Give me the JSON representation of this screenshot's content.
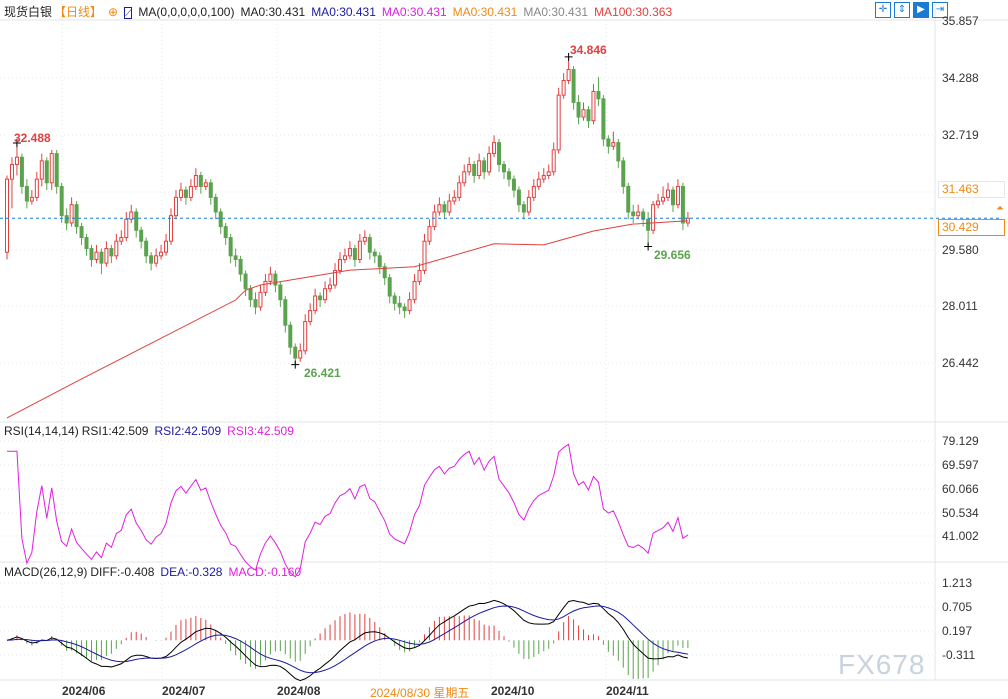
{
  "header": {
    "symbol": "现货白银",
    "period": "【日线】",
    "ma_label": "MA(0,0,0,0,0,100)",
    "ma_values": [
      {
        "text": "MA0:30.431",
        "color": "#222222"
      },
      {
        "text": "MA0:30.431",
        "color": "#1a1aa0"
      },
      {
        "text": "MA0:30.431",
        "color": "#e020e0"
      },
      {
        "text": "MA0:30.431",
        "color": "#f08a14"
      },
      {
        "text": "MA0:30.431",
        "color": "#888888"
      },
      {
        "text": "MA100:30.363",
        "color": "#e04040"
      }
    ]
  },
  "toolbar": {
    "icons": [
      "crosshair-icon",
      "fit-vertical-icon",
      "play-icon",
      "scroll-right-icon"
    ]
  },
  "price_axis": [
    "35.857",
    "34.288",
    "32.719",
    "29.580",
    "28.011",
    "26.442"
  ],
  "price_axis_orange": "31.463",
  "current_price": "30.429",
  "extremes": {
    "high": "32.488",
    "high2": "34.846",
    "low": "26.421",
    "low2": "29.656"
  },
  "rsi": {
    "label": "RSI(14,14,14)",
    "rsi1": "RSI1:42.509",
    "rsi2": "RSI2:42.509",
    "rsi3": "RSI3:42.509",
    "axis": [
      "79.129",
      "69.597",
      "60.066",
      "50.534",
      "41.002"
    ]
  },
  "macd": {
    "label": "MACD(26,12,9)",
    "diff": "DIFF:-0.408",
    "dea": "DEA:-0.328",
    "macd": "MACD:-0.160",
    "axis": [
      "1.213",
      "0.705",
      "0.197",
      "-0.311"
    ]
  },
  "dates": [
    "2024/06",
    "2024/07",
    "2024/08",
    "2024/08/30 星期五",
    "2024/10",
    "2024/11"
  ],
  "watermark": "FX678",
  "colors": {
    "up": "#e04040",
    "down": "#5ba34f",
    "ma100": "#e04040",
    "rsi": "#e020e0",
    "diff": "#000000",
    "dea": "#1a1aa0",
    "accent": "#f08a14"
  },
  "chart_data": {
    "type": "candlestick",
    "ylim": [
      24.8,
      35.857
    ],
    "candles": [
      [
        29.5,
        31.6,
        29.3,
        31.5
      ],
      [
        31.5,
        32.1,
        30.7,
        31.9
      ],
      [
        31.9,
        32.488,
        31.6,
        32.1
      ],
      [
        32.1,
        32.2,
        31.1,
        31.3
      ],
      [
        31.3,
        31.5,
        30.7,
        30.9
      ],
      [
        30.9,
        31.2,
        30.8,
        31.0
      ],
      [
        31.0,
        31.7,
        30.9,
        31.5
      ],
      [
        31.5,
        32.2,
        31.3,
        32.0
      ],
      [
        32.0,
        32.1,
        31.2,
        31.4
      ],
      [
        31.4,
        32.3,
        31.2,
        32.2
      ],
      [
        32.2,
        32.3,
        31.1,
        31.3
      ],
      [
        31.3,
        31.4,
        30.3,
        30.5
      ],
      [
        30.5,
        30.7,
        30.1,
        30.3
      ],
      [
        30.3,
        31.0,
        30.2,
        30.8
      ],
      [
        30.8,
        30.9,
        30.0,
        30.2
      ],
      [
        30.2,
        30.3,
        29.7,
        29.9
      ],
      [
        29.9,
        30.0,
        29.4,
        29.6
      ],
      [
        29.6,
        29.7,
        29.1,
        29.3
      ],
      [
        29.3,
        29.7,
        29.2,
        29.5
      ],
      [
        29.5,
        29.6,
        28.9,
        29.2
      ],
      [
        29.2,
        29.8,
        29.1,
        29.6
      ],
      [
        29.6,
        29.7,
        29.2,
        29.4
      ],
      [
        29.4,
        30.0,
        29.3,
        29.8
      ],
      [
        29.8,
        30.1,
        29.7,
        29.9
      ],
      [
        29.9,
        30.6,
        29.8,
        30.4
      ],
      [
        30.4,
        30.8,
        30.3,
        30.6
      ],
      [
        30.6,
        30.7,
        29.9,
        30.1
      ],
      [
        30.1,
        30.2,
        29.6,
        29.8
      ],
      [
        29.8,
        29.9,
        29.2,
        29.4
      ],
      [
        29.4,
        29.5,
        29.0,
        29.2
      ],
      [
        29.2,
        29.6,
        29.1,
        29.4
      ],
      [
        29.4,
        29.7,
        29.3,
        29.5
      ],
      [
        29.5,
        30.0,
        29.4,
        29.8
      ],
      [
        29.8,
        30.7,
        29.7,
        30.5
      ],
      [
        30.5,
        31.2,
        30.4,
        31.0
      ],
      [
        31.0,
        31.4,
        30.9,
        31.2
      ],
      [
        31.2,
        31.3,
        30.8,
        31.0
      ],
      [
        31.0,
        31.5,
        30.9,
        31.3
      ],
      [
        31.3,
        31.8,
        31.2,
        31.6
      ],
      [
        31.6,
        31.7,
        31.1,
        31.3
      ],
      [
        31.3,
        31.5,
        31.2,
        31.4
      ],
      [
        31.4,
        31.5,
        30.8,
        31.0
      ],
      [
        31.0,
        31.1,
        30.4,
        30.6
      ],
      [
        30.6,
        30.7,
        30.0,
        30.2
      ],
      [
        30.2,
        30.3,
        29.7,
        29.9
      ],
      [
        29.9,
        30.0,
        29.2,
        29.4
      ],
      [
        29.4,
        29.6,
        29.1,
        29.3
      ],
      [
        29.3,
        29.4,
        28.7,
        28.9
      ],
      [
        28.9,
        29.0,
        28.3,
        28.5
      ],
      [
        28.5,
        28.6,
        28.0,
        28.2
      ],
      [
        28.2,
        28.4,
        27.8,
        28.0
      ],
      [
        28.0,
        28.6,
        27.9,
        28.4
      ],
      [
        28.4,
        28.9,
        28.3,
        28.7
      ],
      [
        28.7,
        29.1,
        28.6,
        28.9
      ],
      [
        28.9,
        29.0,
        28.4,
        28.6
      ],
      [
        28.6,
        28.7,
        28.0,
        28.2
      ],
      [
        28.2,
        28.3,
        27.3,
        27.5
      ],
      [
        27.5,
        27.6,
        26.7,
        26.9
      ],
      [
        26.9,
        27.0,
        26.421,
        26.6
      ],
      [
        26.6,
        27.0,
        26.5,
        26.8
      ],
      [
        26.8,
        27.8,
        26.7,
        27.6
      ],
      [
        27.6,
        28.1,
        27.5,
        27.9
      ],
      [
        27.9,
        28.5,
        27.8,
        28.3
      ],
      [
        28.3,
        28.4,
        28.0,
        28.2
      ],
      [
        28.2,
        28.7,
        28.1,
        28.5
      ],
      [
        28.5,
        28.8,
        28.4,
        28.6
      ],
      [
        28.6,
        29.2,
        28.5,
        29.0
      ],
      [
        29.0,
        29.5,
        28.9,
        29.3
      ],
      [
        29.3,
        29.6,
        29.2,
        29.4
      ],
      [
        29.4,
        29.8,
        29.3,
        29.6
      ],
      [
        29.6,
        29.7,
        29.1,
        29.3
      ],
      [
        29.3,
        30.0,
        29.2,
        29.8
      ],
      [
        29.8,
        30.1,
        29.7,
        29.9
      ],
      [
        29.9,
        30.0,
        29.3,
        29.5
      ],
      [
        29.5,
        29.6,
        29.2,
        29.4
      ],
      [
        29.4,
        29.5,
        28.9,
        29.1
      ],
      [
        29.1,
        29.2,
        28.6,
        28.8
      ],
      [
        28.8,
        28.9,
        28.1,
        28.3
      ],
      [
        28.3,
        28.4,
        27.9,
        28.1
      ],
      [
        28.1,
        28.3,
        27.8,
        28.0
      ],
      [
        28.0,
        28.1,
        27.7,
        27.9
      ],
      [
        27.9,
        28.4,
        27.8,
        28.2
      ],
      [
        28.2,
        28.9,
        28.1,
        28.7
      ],
      [
        28.7,
        29.2,
        28.6,
        29.0
      ],
      [
        29.0,
        30.0,
        28.9,
        29.8
      ],
      [
        29.8,
        30.4,
        29.7,
        30.2
      ],
      [
        30.2,
        30.8,
        30.1,
        30.6
      ],
      [
        30.6,
        31.0,
        30.5,
        30.8
      ],
      [
        30.8,
        30.9,
        30.4,
        30.6
      ],
      [
        30.6,
        31.1,
        30.5,
        30.9
      ],
      [
        30.9,
        31.2,
        30.8,
        31.0
      ],
      [
        31.0,
        31.6,
        30.9,
        31.4
      ],
      [
        31.4,
        31.9,
        31.3,
        31.7
      ],
      [
        31.7,
        32.1,
        31.6,
        31.9
      ],
      [
        31.9,
        32.0,
        31.4,
        31.6
      ],
      [
        31.6,
        32.2,
        31.5,
        32.0
      ],
      [
        32.0,
        32.1,
        31.5,
        31.7
      ],
      [
        31.7,
        32.4,
        31.6,
        32.2
      ],
      [
        32.2,
        32.7,
        32.1,
        32.5
      ],
      [
        32.5,
        32.6,
        31.7,
        31.9
      ],
      [
        31.9,
        32.0,
        31.5,
        31.7
      ],
      [
        31.7,
        31.8,
        31.3,
        31.5
      ],
      [
        31.5,
        31.6,
        31.0,
        31.2
      ],
      [
        31.2,
        31.3,
        30.6,
        30.8
      ],
      [
        30.8,
        30.9,
        30.4,
        30.6
      ],
      [
        30.6,
        31.2,
        30.5,
        31.0
      ],
      [
        31.0,
        31.5,
        30.9,
        31.3
      ],
      [
        31.3,
        31.7,
        31.2,
        31.5
      ],
      [
        31.5,
        31.8,
        31.4,
        31.6
      ],
      [
        31.6,
        31.9,
        31.5,
        31.7
      ],
      [
        31.7,
        32.5,
        31.6,
        32.3
      ],
      [
        32.3,
        34.0,
        32.2,
        33.8
      ],
      [
        33.8,
        34.4,
        33.7,
        34.2
      ],
      [
        34.2,
        34.846,
        34.1,
        34.5
      ],
      [
        34.5,
        34.6,
        33.4,
        33.6
      ],
      [
        33.6,
        33.8,
        33.0,
        33.2
      ],
      [
        33.2,
        33.6,
        33.1,
        33.4
      ],
      [
        33.4,
        33.5,
        32.9,
        33.1
      ],
      [
        33.1,
        34.1,
        33.0,
        33.9
      ],
      [
        33.9,
        34.3,
        33.5,
        33.7
      ],
      [
        33.7,
        33.8,
        32.4,
        32.6
      ],
      [
        32.6,
        32.7,
        32.2,
        32.4
      ],
      [
        32.4,
        32.8,
        32.3,
        32.5
      ],
      [
        32.5,
        32.6,
        31.8,
        32.0
      ],
      [
        32.0,
        32.1,
        31.1,
        31.3
      ],
      [
        31.3,
        31.4,
        30.4,
        30.6
      ],
      [
        30.6,
        30.8,
        30.3,
        30.5
      ],
      [
        30.5,
        30.8,
        30.4,
        30.6
      ],
      [
        30.6,
        30.7,
        30.2,
        30.4
      ],
      [
        30.4,
        30.6,
        29.656,
        30.1
      ],
      [
        30.1,
        30.9,
        30.0,
        30.8
      ],
      [
        30.8,
        31.1,
        30.7,
        30.9
      ],
      [
        30.9,
        31.3,
        30.8,
        31.0
      ],
      [
        31.0,
        31.4,
        30.9,
        31.2
      ],
      [
        31.2,
        31.3,
        30.6,
        30.8
      ],
      [
        30.8,
        31.5,
        30.7,
        31.3
      ],
      [
        31.3,
        31.4,
        30.1,
        30.3
      ],
      [
        30.3,
        30.6,
        30.2,
        30.429
      ]
    ],
    "ma100": [
      [
        1,
        24.96
      ],
      [
        16,
        26.03
      ],
      [
        47,
        28.19
      ],
      [
        49,
        28.46
      ],
      [
        52,
        28.6
      ],
      [
        70,
        29.01
      ],
      [
        83,
        29.1
      ],
      [
        99,
        29.73
      ],
      [
        109,
        29.7
      ],
      [
        119,
        30.08
      ],
      [
        127,
        30.27
      ],
      [
        138,
        30.36
      ]
    ]
  }
}
